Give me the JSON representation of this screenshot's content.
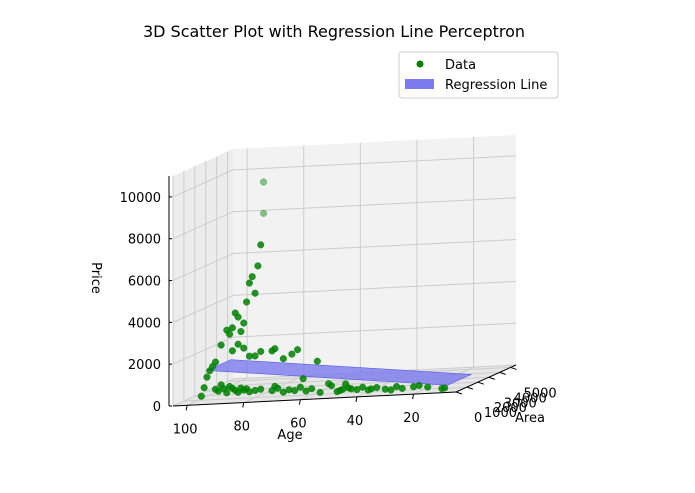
{
  "chart_data": {
    "type": "scatter",
    "projection": "3d",
    "title": "3D Scatter Plot with Regression Line Perceptron",
    "xlabel": "Age",
    "ylabel": "Area",
    "zlabel": "Price",
    "xlim": [
      5,
      105
    ],
    "ylim": [
      0,
      5500
    ],
    "zlim": [
      0,
      11000
    ],
    "x_ticks": [
      "100",
      "80",
      "60",
      "40",
      "20"
    ],
    "y_ticks": [
      "0",
      "1000",
      "2000",
      "3000",
      "4000",
      "5000"
    ],
    "z_ticks": [
      "0",
      "2000",
      "4000",
      "6000",
      "8000",
      "10000"
    ],
    "grid": true,
    "legend_position": "top-right",
    "colors": {
      "data": "#008000",
      "regression": "#7b7bee",
      "pane": "#f2f2f2",
      "grid": "#cccccc"
    },
    "legend": [
      {
        "label": "Data",
        "marker": "dot",
        "color": "#008000"
      },
      {
        "label": "Regression Line",
        "marker": "patch",
        "color": "#7b7bee"
      }
    ],
    "regression_plane": {
      "z_at_x_min": 1800,
      "z_at_x_max": 300
    },
    "series": [
      {
        "name": "Data",
        "points": [
          [
            95,
            0,
            400
          ],
          [
            94,
            0,
            800
          ],
          [
            93,
            0,
            1300
          ],
          [
            92,
            0,
            1600
          ],
          [
            91,
            0,
            1800
          ],
          [
            90,
            0,
            700
          ],
          [
            89,
            0,
            600
          ],
          [
            88,
            0,
            900
          ],
          [
            87,
            0,
            700
          ],
          [
            86,
            0,
            500
          ],
          [
            85,
            0,
            800
          ],
          [
            84,
            0,
            700
          ],
          [
            83,
            0,
            600
          ],
          [
            82,
            0,
            500
          ],
          [
            81,
            0,
            700
          ],
          [
            80,
            0,
            600
          ],
          [
            79,
            0,
            650
          ],
          [
            78,
            0,
            500
          ],
          [
            76,
            0,
            550
          ],
          [
            74,
            0,
            600
          ],
          [
            70,
            0,
            500
          ],
          [
            69,
            0,
            700
          ],
          [
            68,
            0,
            600
          ],
          [
            66,
            0,
            400
          ],
          [
            64,
            0,
            500
          ],
          [
            62,
            0,
            450
          ],
          [
            60,
            0,
            600
          ],
          [
            58,
            0,
            400
          ],
          [
            56,
            0,
            500
          ],
          [
            53,
            0,
            300
          ],
          [
            50,
            0,
            700
          ],
          [
            49,
            0,
            600
          ],
          [
            47,
            0,
            300
          ],
          [
            46,
            0,
            350
          ],
          [
            45,
            0,
            400
          ],
          [
            44,
            0,
            650
          ],
          [
            43,
            0,
            450
          ],
          [
            42,
            0,
            400
          ],
          [
            40,
            0,
            350
          ],
          [
            38,
            0,
            450
          ],
          [
            36,
            0,
            300
          ],
          [
            35,
            0,
            350
          ],
          [
            33,
            0,
            400
          ],
          [
            30,
            0,
            300
          ],
          [
            28,
            0,
            250
          ],
          [
            26,
            0,
            400
          ],
          [
            24,
            0,
            300
          ],
          [
            20,
            0,
            350
          ],
          [
            18,
            0,
            400
          ],
          [
            15,
            0,
            300
          ],
          [
            10,
            0,
            200
          ],
          [
            9,
            0,
            220
          ],
          [
            90,
            0,
            2000
          ],
          [
            88,
            0,
            2800
          ],
          [
            86,
            0,
            3500
          ],
          [
            85,
            0,
            3300
          ],
          [
            84,
            0,
            3600
          ],
          [
            83,
            0,
            4300
          ],
          [
            82,
            0,
            4100
          ],
          [
            81,
            0,
            3400
          ],
          [
            80,
            0,
            3800
          ],
          [
            79,
            0,
            4800
          ],
          [
            78,
            0,
            5700
          ],
          [
            77,
            0,
            6000
          ],
          [
            76,
            0,
            5200
          ],
          [
            75,
            0,
            6500
          ],
          [
            74,
            0,
            7500
          ],
          [
            84,
            0,
            2500
          ],
          [
            82,
            0,
            2800
          ],
          [
            80,
            0,
            2600
          ],
          [
            78,
            0,
            2200
          ],
          [
            76,
            0,
            2200
          ],
          [
            74,
            0,
            2400
          ],
          [
            70,
            0,
            2400
          ],
          [
            69,
            0,
            2500
          ],
          [
            66,
            0,
            2000
          ],
          [
            63,
            0,
            2200
          ],
          [
            61,
            0,
            2400
          ],
          [
            59,
            0,
            1000
          ],
          [
            54,
            0,
            1800
          ],
          [
            73,
            0,
            9000
          ],
          [
            73,
            0,
            10500
          ]
        ]
      }
    ]
  }
}
